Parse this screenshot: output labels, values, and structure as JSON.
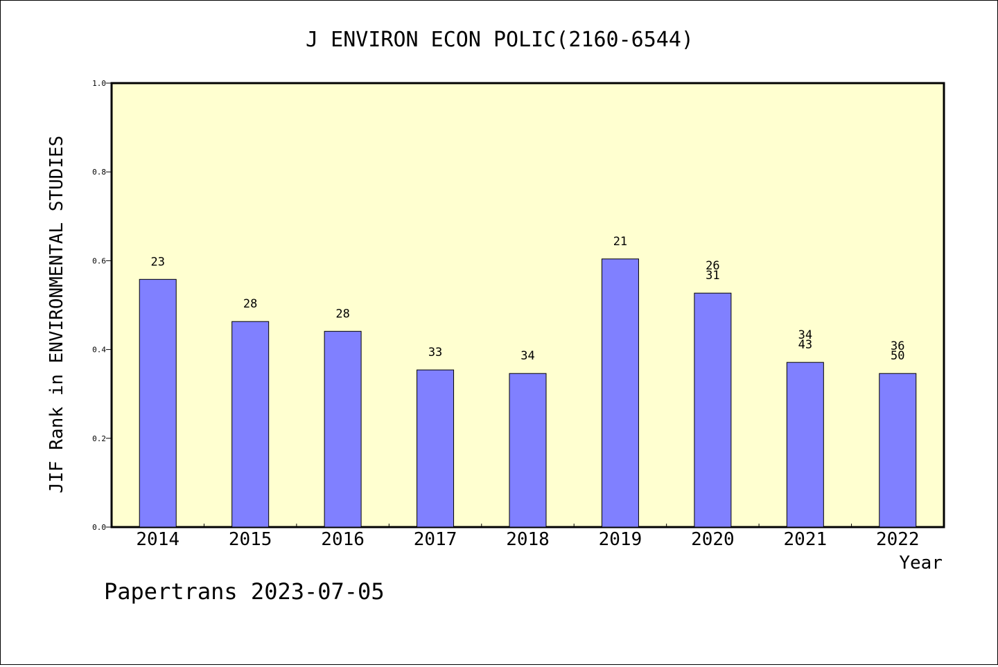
{
  "chart_data": {
    "type": "bar",
    "title": "J ENVIRON ECON POLIC(2160-6544)",
    "xlabel": "Year",
    "ylabel": "JIF Rank in ENVIRONMENTAL STUDIES",
    "categories": [
      "2014",
      "2015",
      "2016",
      "2017",
      "2018",
      "2019",
      "2020",
      "2021",
      "2022"
    ],
    "values": [
      0.558,
      0.463,
      0.441,
      0.354,
      0.346,
      0.604,
      0.527,
      0.371,
      0.346
    ],
    "data_labels": [
      [
        "23"
      ],
      [
        "28"
      ],
      [
        "28"
      ],
      [
        "33"
      ],
      [
        "34"
      ],
      [
        "21"
      ],
      [
        "26",
        "31"
      ],
      [
        "34",
        "43"
      ],
      [
        "36",
        "50"
      ]
    ],
    "ylim": [
      0,
      1.0
    ],
    "yticks": [
      "0.0",
      "0.2",
      "0.4",
      "0.6",
      "0.8",
      "1.0"
    ],
    "grid": false,
    "colors": {
      "plot_bg": "#ffffd0",
      "bar": "#8080ff",
      "axis": "#000000"
    }
  },
  "footer": {
    "text": "Papertrans 2023-07-05"
  }
}
